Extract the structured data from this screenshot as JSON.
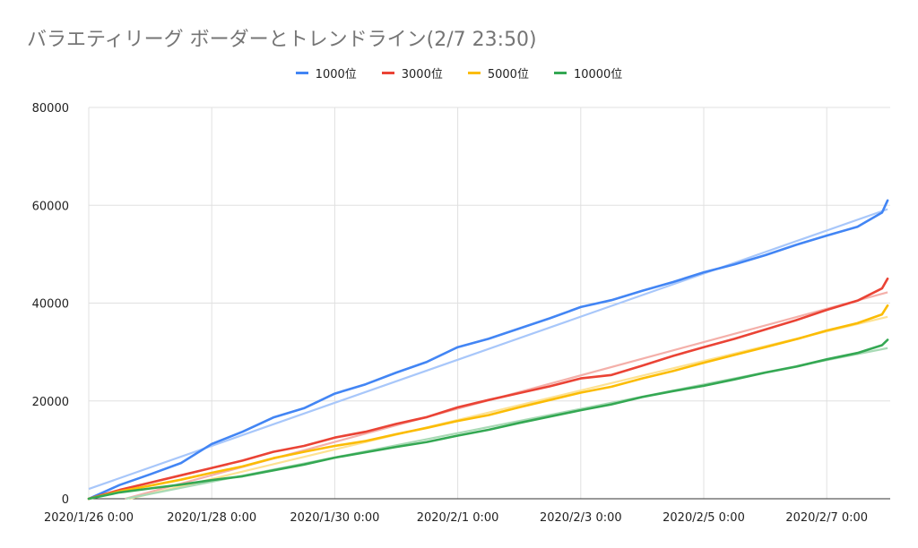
{
  "chart_data": {
    "type": "line",
    "title": "バラエティリーグ ボーダーとトレンドライン(2/7 23:50)",
    "xlabel": "",
    "ylabel": "",
    "x_ticks": [
      "2020/1/26 0:00",
      "2020/1/28 0:00",
      "2020/1/30 0:00",
      "2020/2/1 0:00",
      "2020/2/3 0:00",
      "2020/2/5 0:00",
      "2020/2/7 0:00"
    ],
    "x_range_days": [
      0,
      12.99
    ],
    "y_ticks": [
      0,
      20000,
      40000,
      60000,
      80000
    ],
    "ylim": [
      0,
      80000
    ],
    "grid": true,
    "legend_position": "top-center",
    "x_days": [
      0,
      0.5,
      1,
      1.5,
      2,
      2.5,
      3,
      3.5,
      4,
      4.5,
      5,
      5.5,
      6,
      6.5,
      7,
      7.5,
      8,
      8.5,
      9,
      9.5,
      10,
      10.5,
      11,
      11.5,
      12,
      12.5,
      12.9,
      12.99
    ],
    "series": [
      {
        "name": "1000位",
        "color": "#4285f4",
        "trend_color": "#a8c7fa",
        "values": [
          0,
          2800,
          5000,
          7300,
          11200,
          13700,
          16600,
          18500,
          21500,
          23400,
          25800,
          28000,
          31000,
          32700,
          34800,
          36900,
          39200,
          40600,
          42500,
          44300,
          46300,
          47900,
          49800,
          51900,
          53800,
          55600,
          58500,
          61000
        ],
        "trend": [
          2000,
          59200
        ]
      },
      {
        "name": "3000位",
        "color": "#ea4335",
        "trend_color": "#f4b0aa",
        "values": [
          0,
          1800,
          3300,
          4800,
          6300,
          7800,
          9600,
          10800,
          12500,
          13700,
          15300,
          16700,
          18700,
          20200,
          21600,
          23000,
          24600,
          25300,
          27200,
          29200,
          31000,
          32700,
          34600,
          36500,
          38600,
          40500,
          43000,
          45000
        ],
        "trend": [
          -2000,
          42200
        ]
      },
      {
        "name": "5000位",
        "color": "#fbbc04",
        "trend_color": "#fde293",
        "values": [
          0,
          1500,
          2700,
          3900,
          5300,
          6600,
          8300,
          9600,
          10800,
          11800,
          13200,
          14500,
          15900,
          17100,
          18700,
          20200,
          21700,
          22900,
          24600,
          26100,
          27800,
          29400,
          31000,
          32600,
          34400,
          35900,
          37700,
          39500
        ],
        "trend": [
          -2000,
          37200
        ]
      },
      {
        "name": "10000位",
        "color": "#34a853",
        "trend_color": "#a8dab5",
        "values": [
          0,
          1300,
          2100,
          2900,
          3800,
          4600,
          5800,
          7000,
          8400,
          9500,
          10600,
          11600,
          12900,
          14100,
          15500,
          16800,
          18100,
          19300,
          20800,
          22000,
          23100,
          24400,
          25800,
          27000,
          28500,
          29800,
          31400,
          32500
        ],
        "trend": [
          -1500,
          30800
        ]
      }
    ]
  }
}
